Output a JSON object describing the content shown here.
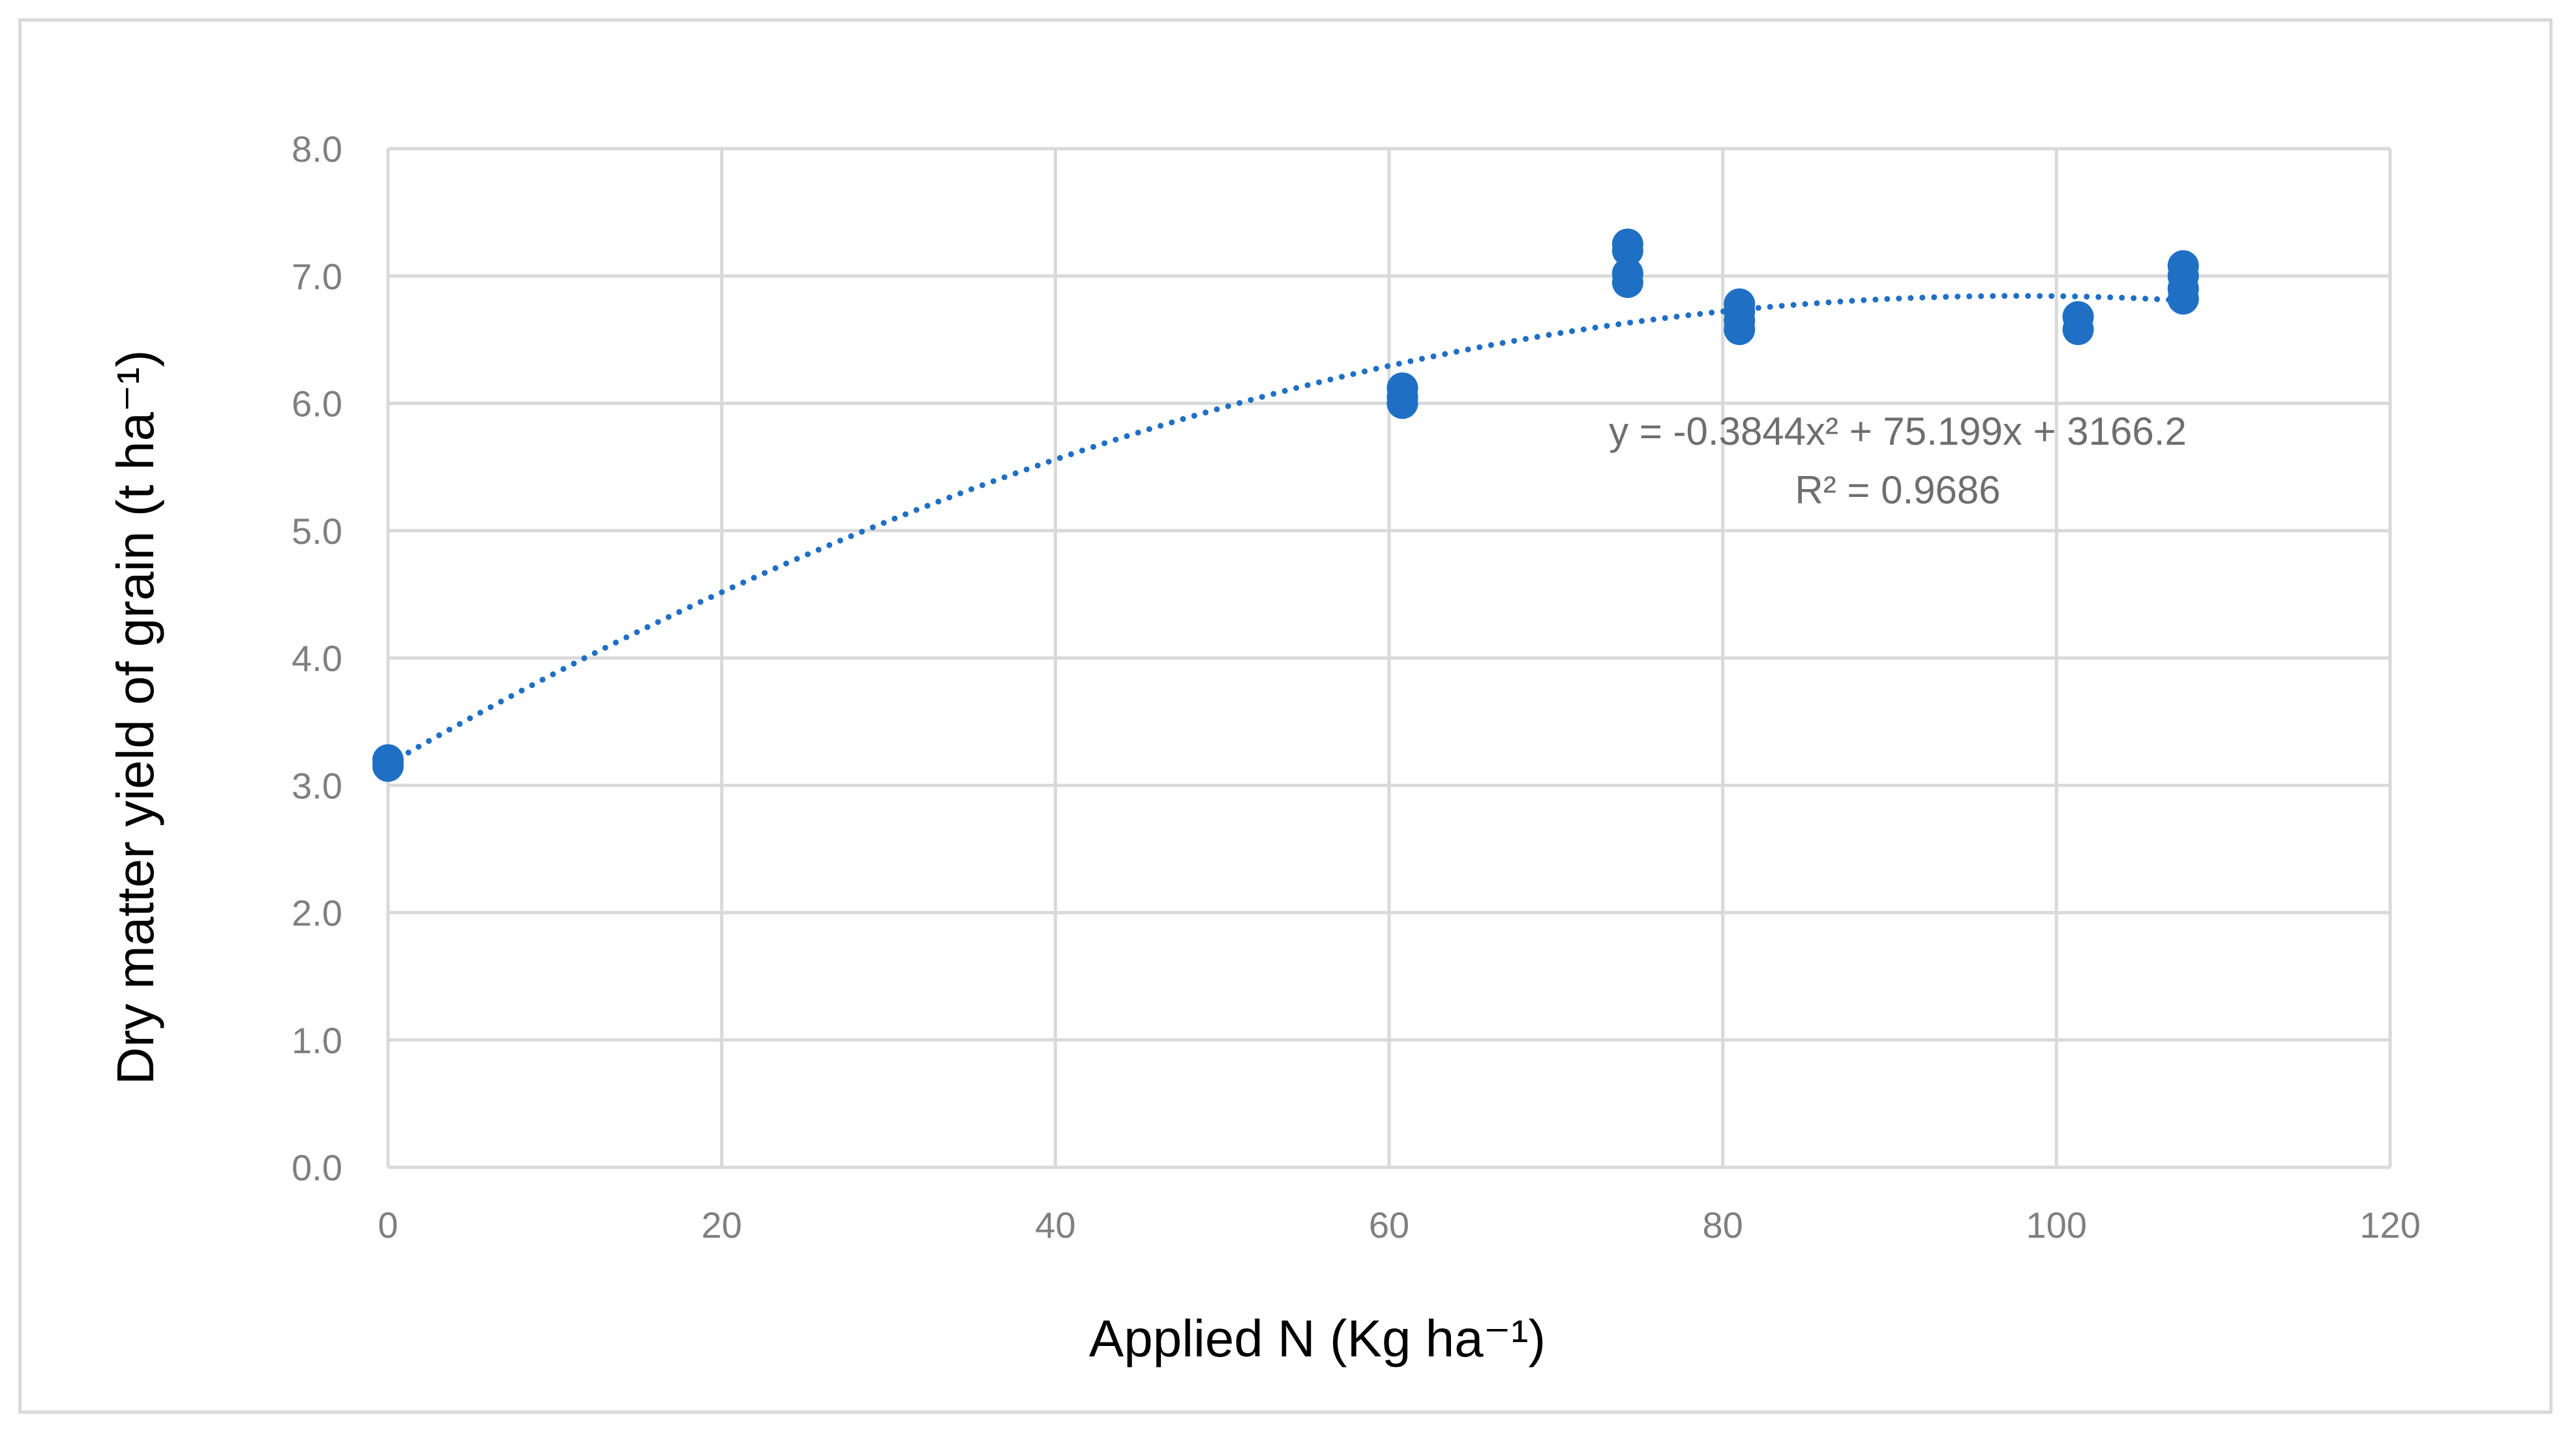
{
  "chart_data": {
    "type": "scatter",
    "title": "",
    "xlabel": "Applied  N (Kg ha⁻¹)",
    "ylabel": "Dry matter yield of grain (t ha⁻¹)",
    "xlim": [
      0,
      120
    ],
    "ylim": [
      0,
      8
    ],
    "xticks": [
      "0",
      "20",
      "40",
      "60",
      "80",
      "100",
      "120"
    ],
    "yticks": [
      "0.0",
      "1.0",
      "2.0",
      "3.0",
      "4.0",
      "5.0",
      "6.0",
      "7.0",
      "8.0"
    ],
    "grid": true,
    "series": [
      {
        "name": "Dry matter yield of grain",
        "color": "#1f6fc5",
        "points": [
          {
            "x": 0,
            "y": 3.15
          },
          {
            "x": 0,
            "y": 3.2
          },
          {
            "x": 60.8,
            "y": 6.0
          },
          {
            "x": 60.8,
            "y": 6.05
          },
          {
            "x": 60.8,
            "y": 6.12
          },
          {
            "x": 74.3,
            "y": 6.95
          },
          {
            "x": 74.3,
            "y": 7.02
          },
          {
            "x": 74.3,
            "y": 7.2
          },
          {
            "x": 74.3,
            "y": 7.25
          },
          {
            "x": 81,
            "y": 6.58
          },
          {
            "x": 81,
            "y": 6.65
          },
          {
            "x": 81,
            "y": 6.72
          },
          {
            "x": 81,
            "y": 6.78
          },
          {
            "x": 101.3,
            "y": 6.58
          },
          {
            "x": 101.3
          },
          {
            "x": 101.3,
            "y": 6.68
          },
          {
            "x": 107.6,
            "y": 6.82
          },
          {
            "x": 107.6,
            "y": 6.9
          },
          {
            "x": 107.6,
            "y": 7.0
          },
          {
            "x": 107.6,
            "y": 7.08
          }
        ]
      }
    ],
    "trendline": {
      "type": "polynomial-2",
      "color": "#1f6fc5",
      "a": -0.3844,
      "b": 75.199,
      "c": 3166.2,
      "scale": 0.001,
      "x_range": [
        0,
        107.6
      ],
      "equation": "y = -0.3844x² + 75.199x + 3166.2",
      "r_squared": "R² = 0.9686"
    }
  }
}
